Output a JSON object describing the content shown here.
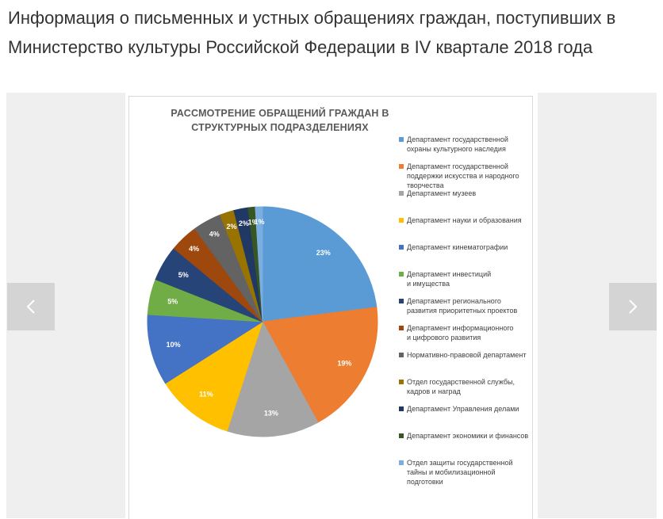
{
  "page": {
    "title": "Информация о письменных и устных обращениях граждан, поступивших в Министерство культуры Российской Федерации в IV квартале 2018 года"
  },
  "slider": {
    "prev_icon": "chevron-left-icon",
    "next_icon": "chevron-right-icon",
    "button_bg": "#d4d4d4",
    "bg": "#efefef"
  },
  "chart_data": {
    "type": "pie",
    "title_lines": [
      "РАССМОТРЕНИЕ ОБРАЩЕНИЙ ГРАЖДАН В",
      "СТРУКТУРНЫХ ПОДРАЗДЕЛЕНИЯХ"
    ],
    "legend_position": "right",
    "categories": [
      "Департамент государственной охраны культурного наследия",
      "Департамент государственной поддержки искусства и народного творчества",
      "Департамент музеев",
      "Департамент науки и образования",
      "Департамент кинематографии",
      "Департамент инвестиций и имущества",
      "Департамент регионального развития приоритетных проектов",
      "Департамент информационного и цифрового развития",
      "Нормативно-правовой департамент",
      "Отдел государственной службы, кадров и наград",
      "Департамент Управления делами",
      "Департамент экономики и финансов",
      "Отдел защиты государственной тайны и мобилизационной подготовки"
    ],
    "legend_lines": [
      [
        "Департамент государственной",
        "охраны культурного наследия"
      ],
      [
        "Департамент государственной",
        "поддержки искусства и народного",
        "творчества"
      ],
      [
        "Департамент музеев"
      ],
      [
        "Департамент науки и образования"
      ],
      [
        "Департамент кинематографии"
      ],
      [
        "Департамент инвестиций",
        "и имущества"
      ],
      [
        "Департамент регионального",
        "развития приоритетных проектов"
      ],
      [
        "Департамент информационного",
        "и цифрового развития"
      ],
      [
        "Нормативно-правовой департамент"
      ],
      [
        "Отдел государственной службы,",
        "кадров и наград"
      ],
      [
        "Департамент Управления делами"
      ],
      [
        "Департамент экономики и финансов"
      ],
      [
        "Отдел защиты государственной",
        "тайны и мобилизационной",
        "подготовки"
      ]
    ],
    "values": [
      23,
      19,
      13,
      11,
      10,
      5,
      5,
      4,
      4,
      2,
      2,
      1,
      1
    ],
    "labels": [
      "23%",
      "19%",
      "13%",
      "11%",
      "10%",
      "5%",
      "5%",
      "4%",
      "4%",
      "2%",
      "2%",
      "1%",
      "1%"
    ],
    "colors": [
      "#5b9bd5",
      "#ed7d31",
      "#a5a5a5",
      "#ffc000",
      "#4472c4",
      "#70ad47",
      "#264478",
      "#9e480e",
      "#636363",
      "#997300",
      "#203864",
      "#375623",
      "#7aaee0"
    ],
    "label_colors": [
      "#ffffff",
      "#ffffff",
      "#ffffff",
      "#ffffff",
      "#ffffff",
      "#ffffff",
      "#ffffff",
      "#ffffff",
      "#ffffff",
      "#ffffff",
      "#ffffff",
      "#ffffff",
      "#ffffff"
    ]
  }
}
